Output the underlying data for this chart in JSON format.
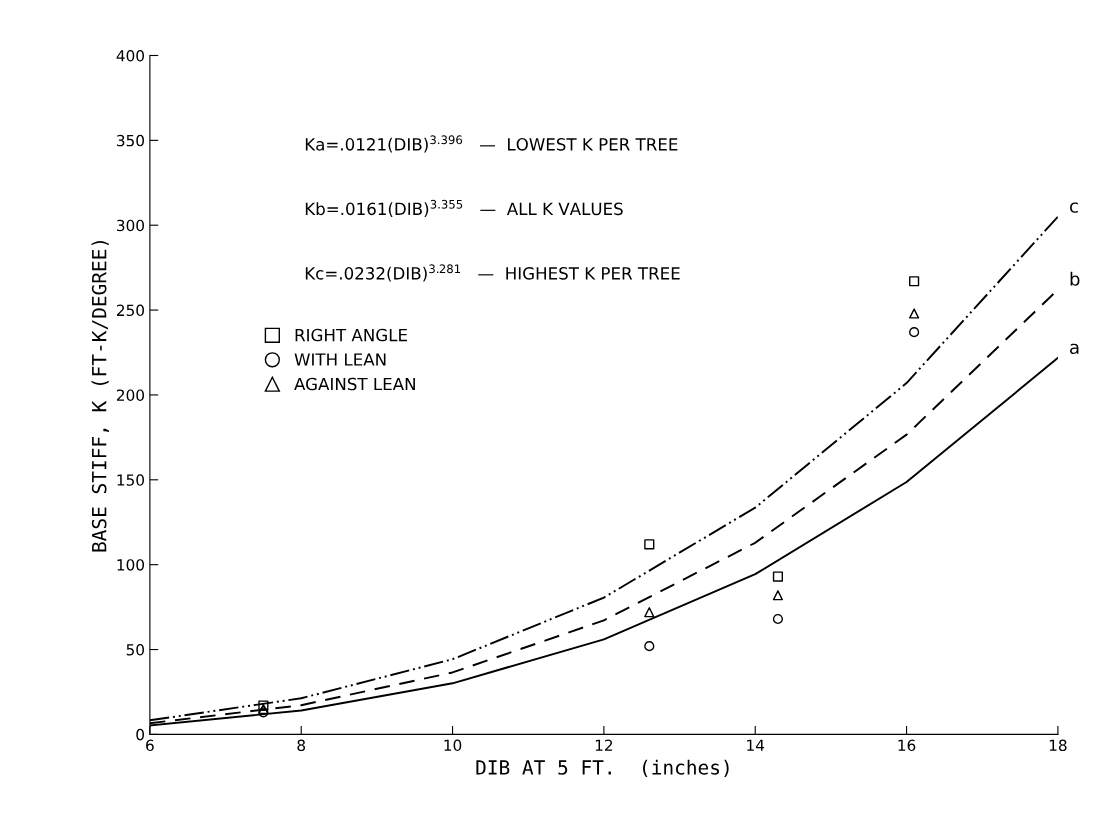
{
  "chart_data": {
    "type": "line",
    "xlabel": "DIB AT 5 FT.  (inches)",
    "ylabel": "BASE STIFF, K (FT-K/DEGREE)",
    "x": [
      6,
      8,
      10,
      12,
      14,
      16,
      18
    ],
    "xlim": [
      6,
      18
    ],
    "xticks": [
      6,
      8,
      10,
      12,
      14,
      16,
      18
    ],
    "ylim": [
      0,
      400
    ],
    "yticks": [
      0,
      50,
      100,
      150,
      200,
      250,
      300,
      350,
      400
    ],
    "grid": false,
    "legend": "left",
    "series": [
      {
        "name": "a",
        "color": "#000000",
        "line_style": "solid",
        "marker": "none",
        "values": [
          5.3,
          14.1,
          30.1,
          56,
          94.4,
          148.7,
          221.8
        ]
      },
      {
        "name": "b",
        "color": "#000000",
        "line_style": "dashed",
        "marker": "none",
        "values": [
          6.6,
          17.2,
          36.5,
          67.2,
          112.9,
          176.6,
          262
        ]
      },
      {
        "name": "c",
        "color": "#000000",
        "line_style": "dashdot",
        "marker": "none",
        "values": [
          8.3,
          21.3,
          44.3,
          80.6,
          133.6,
          207,
          305
        ]
      },
      {
        "type": "scatter",
        "name": "RIGHT ANGLE",
        "color": "#000000",
        "marker": "square",
        "x": [
          7.5,
          12.6,
          14.3,
          16.1
        ],
        "values": [
          17,
          112,
          93,
          267
        ]
      },
      {
        "type": "scatter",
        "name": "WITH LEAN",
        "color": "#000000",
        "marker": "circle",
        "x": [
          7.5,
          12.6,
          14.3,
          16.1
        ],
        "values": [
          13,
          52,
          68,
          237
        ]
      },
      {
        "type": "scatter",
        "name": "AGAINST LEAN",
        "color": "#000000",
        "marker": "triangle",
        "x": [
          7.5,
          12.6,
          14.3,
          16.1
        ],
        "values": [
          15,
          72,
          82,
          248
        ]
      }
    ],
    "annotations": [
      "Ka=.0121(DIB)$^{3.396}$   —  LOWEST K PER TREE",
      "Kb=.0161(DIB)$^{3.355}$   —  ALL K VALUES",
      "Kc=.0232(DIB)$^{3.281}$   —  HIGHEST K PER TREE"
    ]
  }
}
